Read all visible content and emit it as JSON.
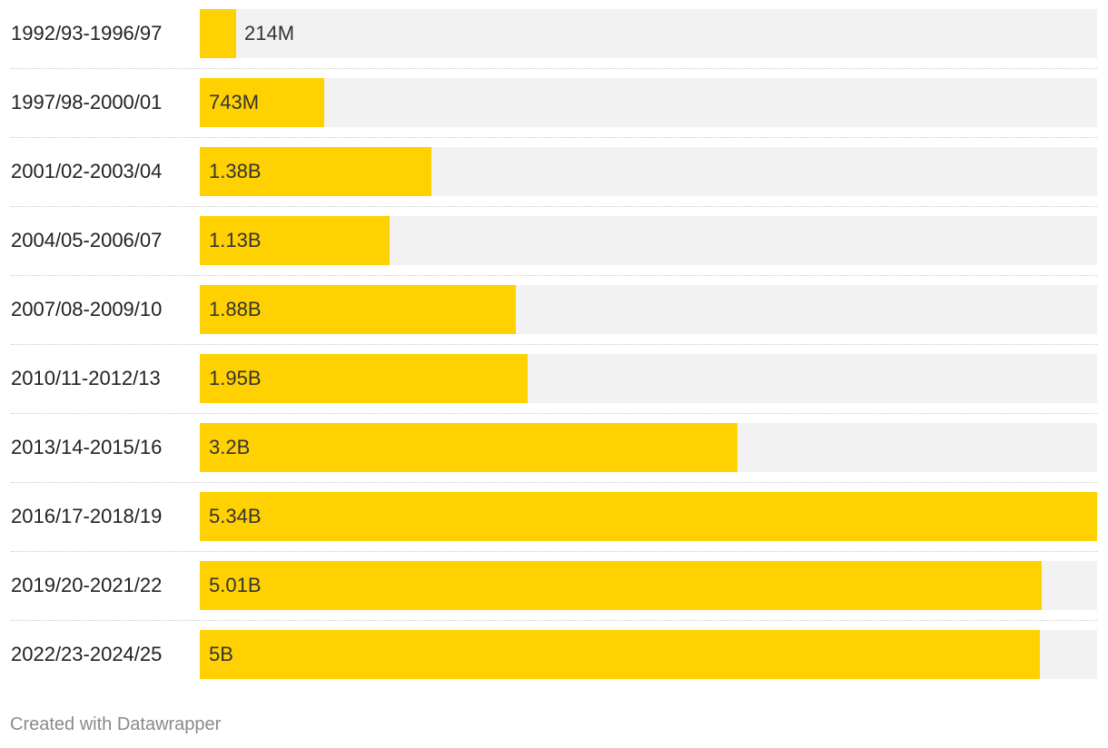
{
  "chart_data": {
    "type": "bar",
    "orientation": "horizontal",
    "categories": [
      "1992/93-1996/97",
      "1997/98-2000/01",
      "2001/02-2003/04",
      "2004/05-2006/07",
      "2007/08-2009/10",
      "2010/11-2012/13",
      "2013/14-2015/16",
      "2016/17-2018/19",
      "2019/20-2021/22",
      "2022/23-2024/25"
    ],
    "values": [
      214000000,
      743000000,
      1380000000,
      1130000000,
      1880000000,
      1950000000,
      3200000000,
      5340000000,
      5010000000,
      5000000000
    ],
    "value_labels": [
      "214M",
      "743M",
      "1.38B",
      "1.13B",
      "1.88B",
      "1.95B",
      "3.2B",
      "5.34B",
      "5.01B",
      "5B"
    ],
    "xlim": [
      0,
      5340000000
    ],
    "grid": false,
    "bar_color": "#ffd100",
    "track_color": "#f2f2f2"
  },
  "footer": {
    "credit": "Created with Datawrapper"
  }
}
